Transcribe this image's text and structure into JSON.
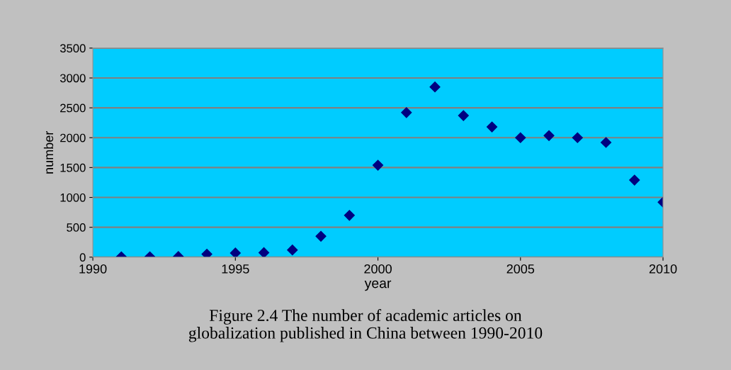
{
  "chart_data": {
    "type": "scatter",
    "xlabel": "year",
    "ylabel": "number",
    "annotations": [
      "Figure 2.4 The number of academic articles on\nglobalization published in China between 1990-2010"
    ],
    "x": [
      1991,
      1992,
      1993,
      1994,
      1995,
      1996,
      1997,
      1998,
      1999,
      2000,
      2001,
      2002,
      2003,
      2004,
      2005,
      2006,
      2007,
      2008,
      2009,
      2010
    ],
    "series": [
      {
        "color": "#000080",
        "values": [
          5,
          5,
          10,
          50,
          70,
          75,
          120,
          350,
          700,
          1540,
          2420,
          2850,
          2370,
          2180,
          2000,
          2035,
          2000,
          1920,
          1290,
          920
        ]
      }
    ],
    "xlim": [
      1990,
      2010
    ],
    "xticks": [
      1990,
      1995,
      2000,
      2005,
      2010
    ],
    "ylim": [
      0,
      3500
    ],
    "yticks": [
      0,
      500,
      1000,
      1500,
      2000,
      2500,
      3000,
      3500
    ],
    "grid": "y",
    "marker": "diamond",
    "legend": false
  }
}
